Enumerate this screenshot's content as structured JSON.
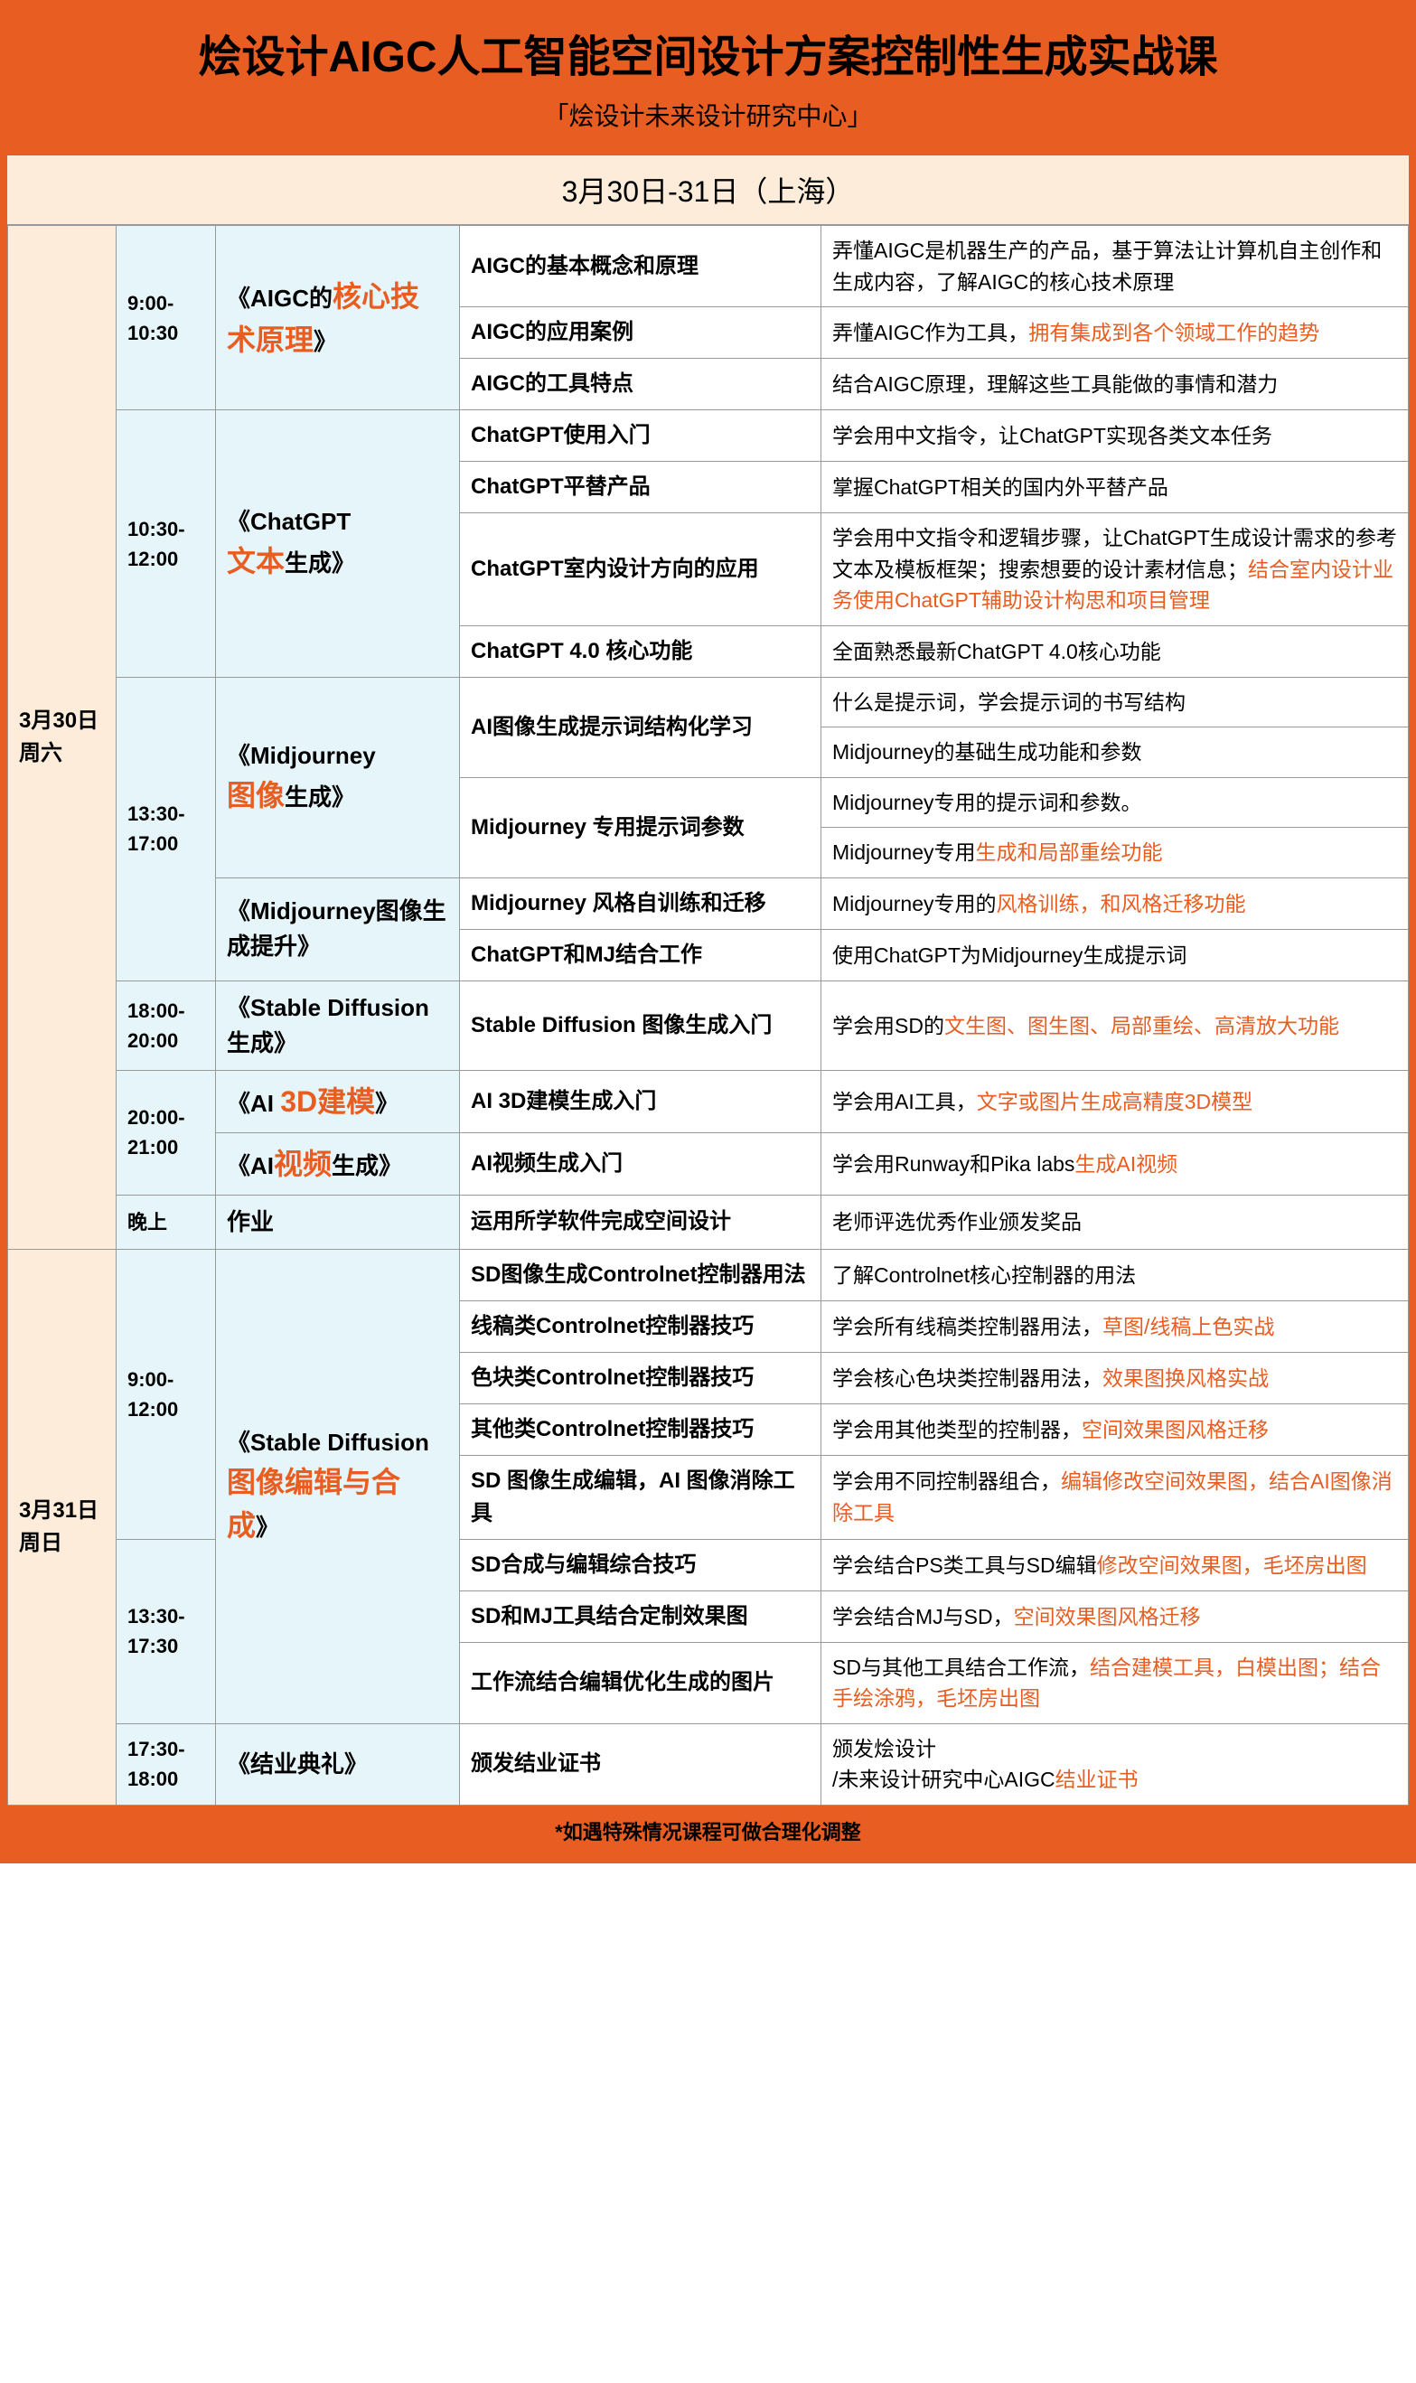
{
  "header": {
    "title": "烩设计AIGC人工智能空间设计方案控制性生成实战课",
    "subtitle": "「烩设计未来设计研究中心」"
  },
  "dateRow": "3月30日-31日（上海）",
  "day1": {
    "date": "3月30日周六",
    "blocks": [
      {
        "time": "9:00-10:30",
        "module_prefix": "《AIGC的",
        "module_hl": "核心技术原理",
        "module_suffix": "》",
        "rows": [
          {
            "topic": "AIGC的基本概念和原理",
            "desc": "弄懂AIGC是机器生产的产品，基于算法让计算机自主创作和生成内容，了解AIGC的核心技术原理"
          },
          {
            "topic": "AIGC的应用案例",
            "desc_pre": "弄懂AIGC作为工具，",
            "desc_hl": "拥有集成到各个领域工作的趋势"
          },
          {
            "topic": "AIGC的工具特点",
            "desc": "结合AIGC原理，理解这些工具能做的事情和潜力"
          }
        ]
      },
      {
        "time": "10:30-12:00",
        "module_prefix": "《ChatGPT",
        "module_hl": "文本",
        "module_suffix": "生成》",
        "rows": [
          {
            "topic": "ChatGPT使用入门",
            "desc": "学会用中文指令，让ChatGPT实现各类文本任务"
          },
          {
            "topic": "ChatGPT平替产品",
            "desc": "掌握ChatGPT相关的国内外平替产品"
          },
          {
            "topic": "ChatGPT室内设计方向的应用",
            "desc_pre": "学会用中文指令和逻辑步骤，让ChatGPT生成设计需求的参考文本及模板框架；搜索想要的设计素材信息；",
            "desc_hl": "结合室内设计业务使用ChatGPT辅助设计构思和项目管理"
          },
          {
            "topic": "ChatGPT 4.0 核心功能",
            "desc": "全面熟悉最新ChatGPT 4.0核心功能"
          }
        ]
      },
      {
        "time": "13:30-17:00",
        "modules": [
          {
            "prefix": "《Midjourney",
            "hl": "图像",
            "suffix": "生成》",
            "span": 4
          },
          {
            "prefix": "《Midjourney图像生成提升》",
            "hl": "",
            "suffix": "",
            "span": 2
          }
        ],
        "rows": [
          {
            "topic": "AI图像生成提示词结构化学习",
            "topic_span": 2,
            "desc": "什么是提示词，学会提示词的书写结构"
          },
          {
            "desc": "Midjourney的基础生成功能和参数"
          },
          {
            "topic": "Midjourney 专用提示词参数",
            "topic_span": 2,
            "desc": "Midjourney专用的提示词和参数。"
          },
          {
            "desc_pre": "Midjourney专用",
            "desc_hl": "生成和局部重绘功能"
          },
          {
            "topic": "Midjourney 风格自训练和迁移",
            "desc_pre": "Midjourney专用的",
            "desc_hl": "风格训练，和风格迁移功能"
          },
          {
            "topic": "ChatGPT和MJ结合工作",
            "desc": "使用ChatGPT为Midjourney生成提示词"
          }
        ]
      },
      {
        "time": "18:00-20:00",
        "module_prefix": "《Stable Diffusion生成》",
        "rows": [
          {
            "topic": "Stable Diffusion 图像生成入门",
            "desc_pre": "学会用SD的",
            "desc_hl": "文生图、图生图、局部重绘、高清放大功能"
          }
        ]
      },
      {
        "time": "20:00-21:00",
        "modules_small": [
          {
            "prefix": "《AI ",
            "hl": "3D建模",
            "suffix": "》"
          },
          {
            "prefix": "《AI",
            "hl": "视频",
            "suffix": "生成》"
          }
        ],
        "rows": [
          {
            "topic": "AI 3D建模生成入门",
            "desc_pre": "学会用AI工具，",
            "desc_hl": "文字或图片生成高精度3D模型"
          },
          {
            "topic": "AI视频生成入门",
            "desc_pre": "学会用Runway和Pika labs",
            "desc_hl": "生成AI视频"
          }
        ]
      }
    ],
    "evening": {
      "time": "晚上",
      "module": "作业",
      "topic": "运用所学软件完成空间设计",
      "desc": "老师评选优秀作业颁发奖品"
    }
  },
  "day2": {
    "date": "3月31日周日",
    "blocks": [
      {
        "time1": "9:00-12:00",
        "time2": "13:30-17:30",
        "module_prefix": "《Stable Diffusion",
        "module_hl": "图像编辑与合成",
        "module_suffix": "》",
        "rows1": [
          {
            "topic": "SD图像生成Controlnet控制器用法",
            "desc": "了解Controlnet核心控制器的用法"
          },
          {
            "topic": "线稿类Controlnet控制器技巧",
            "desc_pre": "学会所有线稿类控制器用法，",
            "desc_hl": "草图/线稿上色实战"
          },
          {
            "topic": "色块类Controlnet控制器技巧",
            "desc_pre": "学会核心色块类控制器用法，",
            "desc_hl": "效果图换风格实战"
          },
          {
            "topic": "其他类Controlnet控制器技巧",
            "desc_pre": "学会用其他类型的控制器，",
            "desc_hl": "空间效果图风格迁移"
          },
          {
            "topic": "SD 图像生成编辑，AI 图像消除工具",
            "desc_pre": "学会用不同控制器组合，",
            "desc_hl": "编辑修改空间效果图，结合AI图像消除工具"
          }
        ],
        "rows2": [
          {
            "topic": "SD合成与编辑综合技巧",
            "desc_pre": "学会结合PS类工具与SD编辑",
            "desc_hl": "修改空间效果图，毛坯房出图"
          },
          {
            "topic": "SD和MJ工具结合定制效果图",
            "desc_pre": "学会结合MJ与SD，",
            "desc_hl": "空间效果图风格迁移"
          },
          {
            "topic": "工作流结合编辑优化生成的图片",
            "desc_pre": "SD与其他工具结合工作流，",
            "desc_hl": "结合建模工具，白模出图；结合手绘涂鸦，毛坯房出图"
          }
        ]
      },
      {
        "time": "17:30-18:00",
        "module": "《结业典礼》",
        "topic": "颁发结业证书",
        "desc_pre": "颁发烩设计<br>/未来设计研究中心AIGC",
        "desc_hl": "结业证书"
      }
    ]
  },
  "footer": "*如遇特殊情况课程可做合理化调整"
}
